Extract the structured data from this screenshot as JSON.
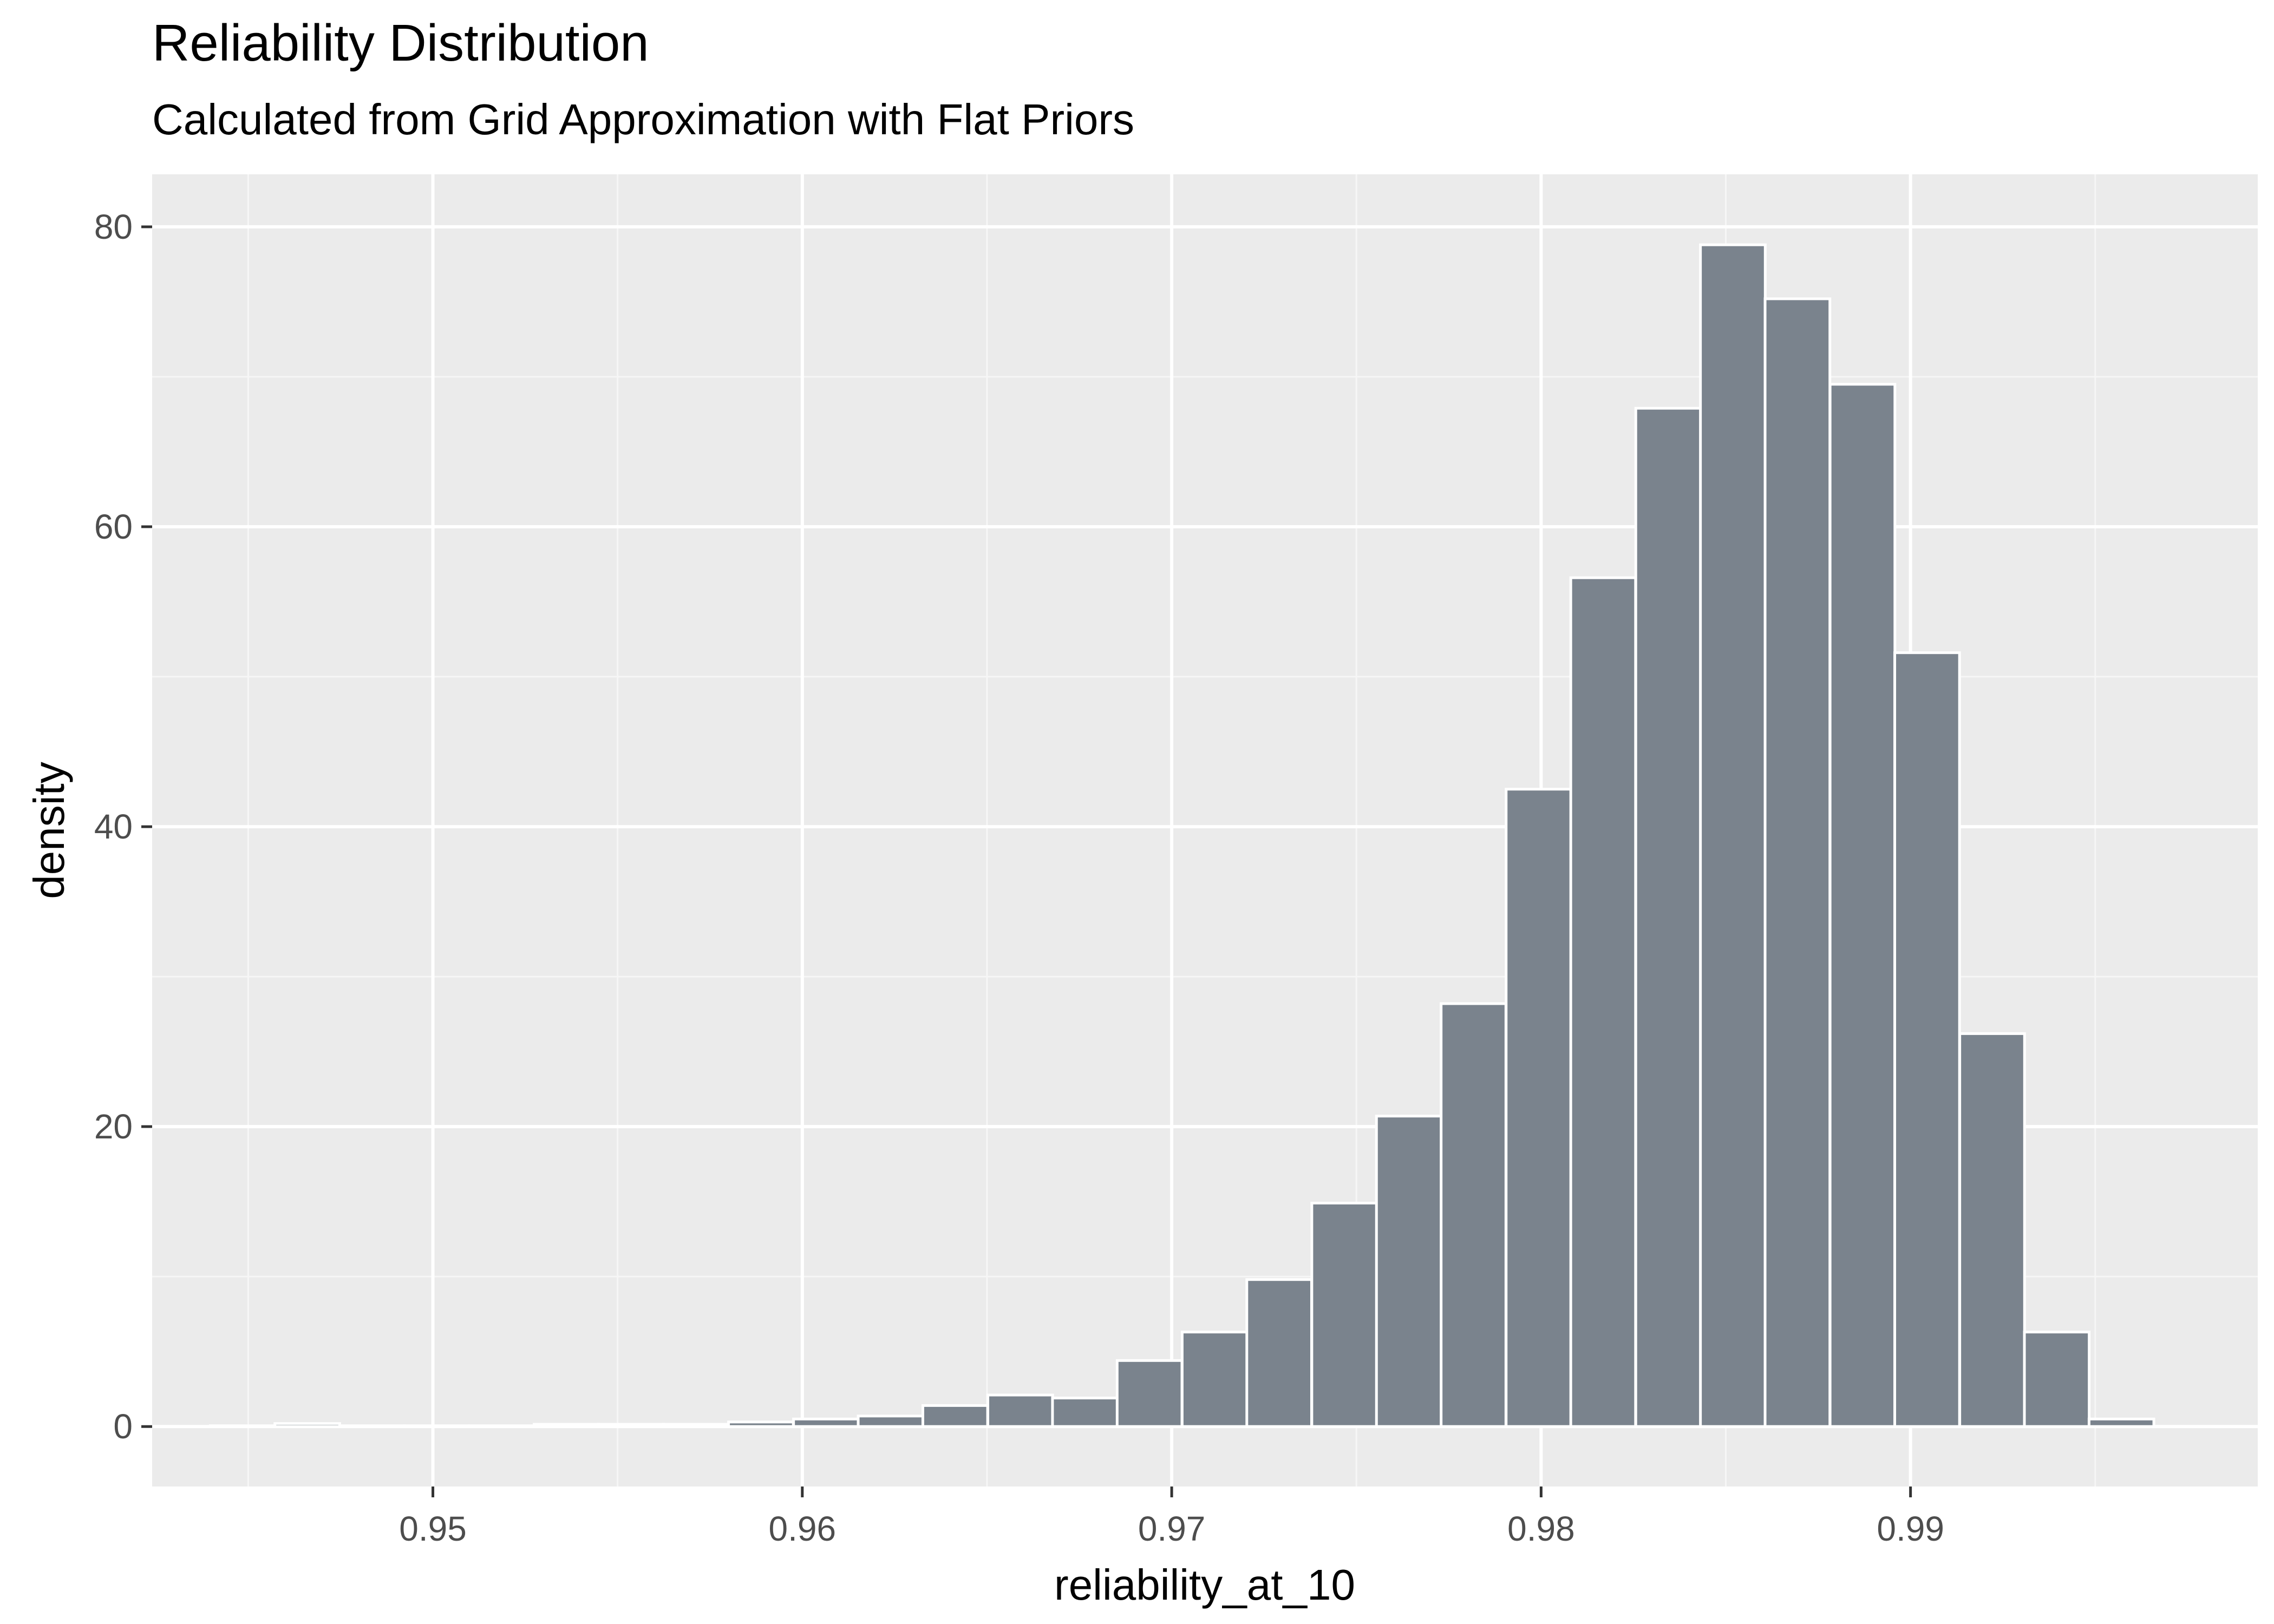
{
  "chart_data": {
    "type": "bar",
    "title": "Reliability Distribution",
    "subtitle": "Calculated from Grid Approximation with Flat Priors",
    "xlabel": "reliability_at_10",
    "ylabel": "density",
    "xlim": [
      0.9424,
      0.9994
    ],
    "ylim": [
      -4.0,
      83.5
    ],
    "x_ticks": [
      {
        "value": 0.95,
        "label": "0.95"
      },
      {
        "value": 0.96,
        "label": "0.96"
      },
      {
        "value": 0.97,
        "label": "0.97"
      },
      {
        "value": 0.98,
        "label": "0.98"
      },
      {
        "value": 0.99,
        "label": "0.99"
      }
    ],
    "y_ticks": [
      {
        "value": 0,
        "label": "0"
      },
      {
        "value": 20,
        "label": "20"
      },
      {
        "value": 40,
        "label": "40"
      },
      {
        "value": 60,
        "label": "60"
      },
      {
        "value": 80,
        "label": "80"
      }
    ],
    "bin_width": 0.001754,
    "bin_centers": [
      0.94485,
      0.9466,
      0.94836,
      0.95011,
      0.95187,
      0.95362,
      0.95537,
      0.95713,
      0.95888,
      0.96064,
      0.96239,
      0.96414,
      0.9659,
      0.96765,
      0.9694,
      0.97116,
      0.97291,
      0.97467,
      0.97642,
      0.97817,
      0.97993,
      0.98168,
      0.98344,
      0.98519,
      0.98694,
      0.9887,
      0.99045,
      0.99221,
      0.99396,
      0.99571
    ],
    "values": [
      0.05,
      0.2,
      0.05,
      0.05,
      0.05,
      0.15,
      0.15,
      0.15,
      0.3,
      0.5,
      0.7,
      1.4,
      2.1,
      1.9,
      4.4,
      6.3,
      9.8,
      14.9,
      20.7,
      28.2,
      42.5,
      56.6,
      67.9,
      78.8,
      75.2,
      69.5,
      51.6,
      26.2,
      6.3,
      0.5
    ],
    "colors": {
      "panel_background": "#ebebeb",
      "grid_major": "#ffffff",
      "grid_minor": "#f6f6f6",
      "bar_fill": "#7a838d",
      "bar_outline": "#ffffff",
      "axis_text": "#4d4d4d",
      "title_text": "#000000"
    },
    "grid": true,
    "legend": "none"
  }
}
